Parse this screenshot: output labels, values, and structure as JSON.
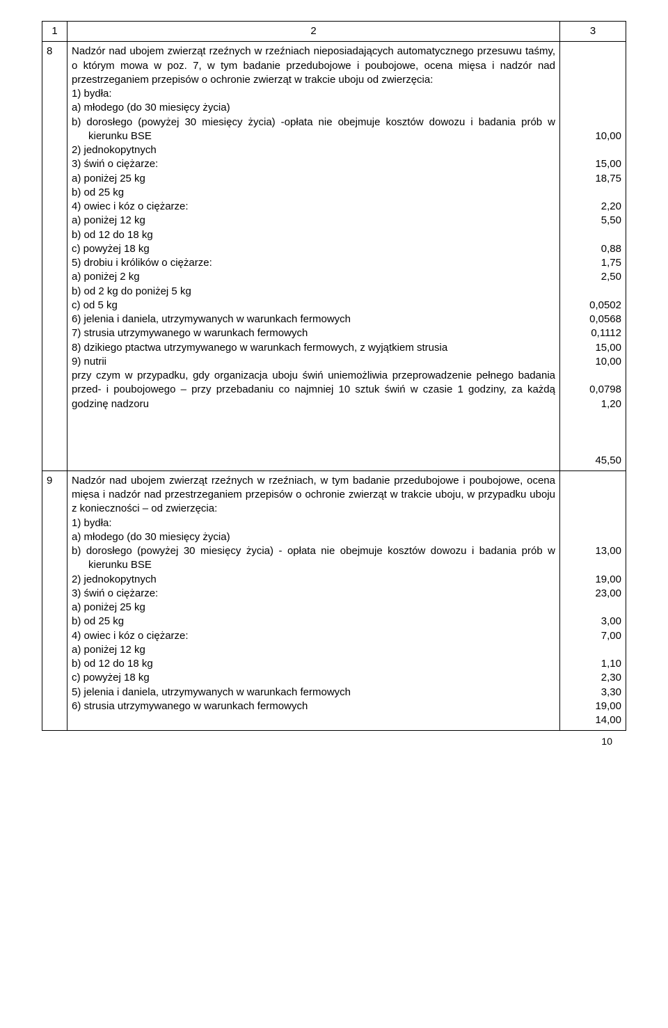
{
  "header": {
    "c1": "1",
    "c2": "2",
    "c3": "3"
  },
  "rows": [
    {
      "num": "8",
      "lines": [
        "Nadzór nad ubojem zwierząt rzeźnych w rzeźniach nieposiadających automatycznego przesuwu taśmy, o którym mowa w poz. 7, w tym badanie przedubojowe i poubojowe, ocena mięsa i nadzór nad przestrzeganiem przepisów o ochronie zwierząt w trakcie uboju od zwierzęcia:",
        "1) bydła:",
        "a) młodego (do 30 miesięcy życia)",
        "b) dorosłego (powyżej 30 miesięcy życia) -opłata nie obejmuje kosztów dowozu i badania prób w kierunku BSE",
        "2) jednokopytnych",
        "3) świń o ciężarze:",
        "a) poniżej 25 kg",
        "b) od 25 kg",
        "4) owiec i kóz o ciężarze:",
        "a) poniżej 12 kg",
        "b) od 12 do 18 kg",
        "c) powyżej 18 kg",
        "5) drobiu i królików o ciężarze:",
        "a) poniżej 2 kg",
        "b) od 2 kg do poniżej 5 kg",
        "c) od 5 kg",
        "6) jelenia i daniela, utrzymywanych w warunkach fermowych",
        "7) strusia utrzymywanego w warunkach fermowych",
        "8) dzikiego ptactwa utrzymywanego w warunkach fermowych, z wyjątkiem strusia",
        "9) nutrii",
        "przy czym w przypadku, gdy organizacja uboju świń uniemożliwia przeprowadzenie pełnego badania przed- i poubojowego – przy przebadaniu co najmniej 10 sztuk świń w czasie 1 godziny, za każdą godzinę nadzoru"
      ],
      "vals": [
        "",
        "",
        "",
        "",
        "",
        "",
        "10,00",
        "",
        "15,00",
        "18,75",
        "",
        "2,20",
        "5,50",
        "",
        "0,88",
        "1,75",
        "2,50",
        "",
        "0,0502",
        "0,0568",
        "0,1112",
        "15,00",
        "10,00",
        "",
        "0,0798",
        "1,20",
        "",
        "",
        "",
        "45,50"
      ]
    },
    {
      "num": "9",
      "lines": [
        "Nadzór nad ubojem zwierząt rzeźnych w rzeźniach, w tym badanie przedubojowe i poubojowe, ocena mięsa i nadzór nad przestrzeganiem przepisów o ochronie zwierząt w trakcie uboju, w przypadku uboju z konieczności – od zwierzęcia:",
        "1) bydła:",
        "a) młodego (do 30 miesięcy życia)",
        "b) dorosłego (powyżej 30 miesięcy życia) - opłata nie obejmuje kosztów dowozu i badania prób w kierunku BSE",
        "2) jednokopytnych",
        "3) świń o ciężarze:",
        "a)   poniżej 25 kg",
        "b)   od 25 kg",
        "4) owiec i kóz o ciężarze:",
        "a) poniżej 12 kg",
        "b) od 12 do 18 kg",
        "c) powyżej 18 kg",
        "5) jelenia i daniela, utrzymywanych w warunkach fermowych",
        "6) strusia utrzymywanego w warunkach fermowych"
      ],
      "vals": [
        "",
        "",
        "",
        "",
        "",
        "13,00",
        "",
        "19,00",
        "23,00",
        "",
        "3,00",
        "7,00",
        "",
        "1,10",
        "2,30",
        "3,30",
        "19,00",
        "14,00"
      ]
    }
  ],
  "pagenum": "10"
}
